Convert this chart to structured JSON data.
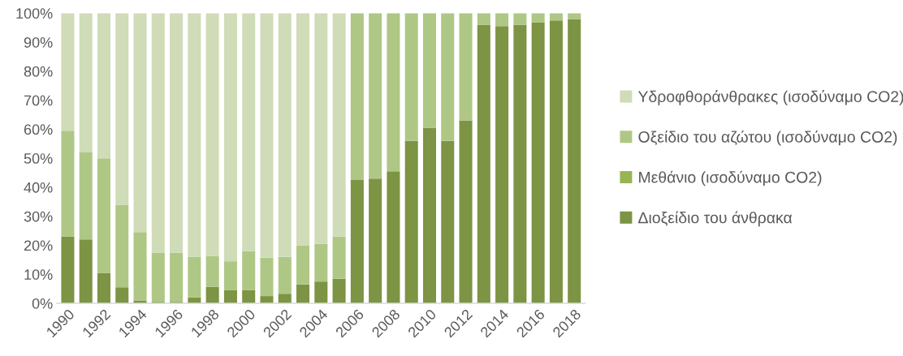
{
  "chart_data": {
    "type": "bar",
    "stacked": true,
    "categories": [
      "1990",
      null,
      "1992",
      null,
      "1994",
      null,
      "1996",
      null,
      "1998",
      null,
      "2000",
      null,
      "2002",
      null,
      "2004",
      null,
      "2006",
      null,
      "2008",
      null,
      "2010",
      null,
      "2012",
      null,
      "2014",
      null,
      "2016",
      null,
      "2018"
    ],
    "series": [
      {
        "name": "Διοξείδιο του άνθρακα",
        "color": "#7c9443",
        "values": [
          23,
          22,
          10.5,
          5.5,
          1,
          0.5,
          0.5,
          2,
          5.7,
          4.5,
          4.5,
          2.5,
          3.3,
          6.5,
          7.5,
          8.5,
          42.5,
          43,
          45.5,
          56,
          60.5,
          56,
          63,
          96,
          95.5,
          96,
          96.7,
          97.5,
          98
        ]
      },
      {
        "name": "Μεθάνιο (ισοδύναμο CO2)",
        "color": "#98b455",
        "values": [
          0,
          0,
          0,
          0,
          0,
          0,
          0,
          0,
          0,
          0,
          0,
          0,
          0,
          0,
          0,
          0,
          0,
          0,
          0,
          0,
          0,
          0,
          0,
          0,
          0,
          0,
          0,
          0,
          0
        ]
      },
      {
        "name": "Οξείδιο του αζώτου (ισοδύναμο CO2)",
        "color": "#afc785",
        "values": [
          36.5,
          30,
          39.5,
          28.5,
          23.5,
          17,
          17,
          14,
          10.6,
          10,
          13.5,
          13.2,
          12.7,
          13.5,
          13,
          14.5,
          57.5,
          57,
          54.5,
          44,
          39.5,
          44,
          37,
          4,
          4.5,
          4,
          3.3,
          2.5,
          2
        ]
      },
      {
        "name": "Υδροφθοράνθρακες (ισοδύναμο CO2)",
        "color": "#cfdcb7",
        "values": [
          40.5,
          48,
          50,
          66,
          75.5,
          82.5,
          82.5,
          84,
          83.7,
          85.5,
          82,
          84.3,
          84,
          80,
          79.5,
          77,
          0,
          0,
          0,
          0,
          0,
          0,
          0,
          0,
          0,
          0,
          0,
          0,
          0
        ]
      }
    ],
    "ylim": [
      0,
      100
    ],
    "yticks": [
      {
        "value": 0,
        "label": "0%"
      },
      {
        "value": 10,
        "label": "10%"
      },
      {
        "value": 20,
        "label": "20%"
      },
      {
        "value": 30,
        "label": "30%"
      },
      {
        "value": 40,
        "label": "40%"
      },
      {
        "value": 50,
        "label": "50%"
      },
      {
        "value": 60,
        "label": "60%"
      },
      {
        "value": 70,
        "label": "70%"
      },
      {
        "value": 80,
        "label": "80%"
      },
      {
        "value": 90,
        "label": "90%"
      },
      {
        "value": 100,
        "label": "100%"
      }
    ],
    "grid": false,
    "legend": "right"
  }
}
